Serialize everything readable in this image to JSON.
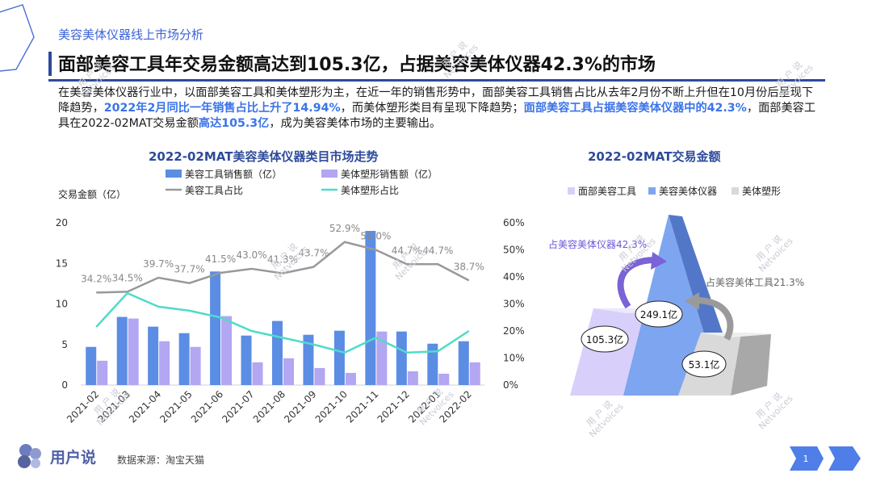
{
  "header": {
    "section_label": "美容美体仪器线上市场分析",
    "title": "面部美容工具年交易金额高达到105.3亿，占据美容美体仪器42.3%的市场"
  },
  "intro": {
    "p1": "在美容美体仪器行业中，以面部美容工具和美体塑形为主，在近一年的销售形势中，面部美容工具销售占比从去年2月份不断上升但在10月份后呈现下降趋势，",
    "h1": "2022年2月同比一年销售占比上升了14.94%",
    "p2": "，而美体塑形类目有呈现下降趋势；",
    "h2": "面部美容工具占据美容美体仪器中的42.3%",
    "p3": "，面部美容工具在2022-02MAT交易金额",
    "h3": "高达105.3亿",
    "p4": "，成为美容美体市场的主要输出。"
  },
  "chart_data": [
    {
      "type": "bar",
      "title": "2022-02MAT美容美体仪器类目市场走势",
      "ylabel": "交易金额（亿）",
      "categories": [
        "2021-02",
        "2021-03",
        "2021-04",
        "2021-05",
        "2021-06",
        "2021-07",
        "2021-08",
        "2021-09",
        "2021-10",
        "2021-11",
        "2021-12",
        "2022-01",
        "2022-02"
      ],
      "ylim": [
        0,
        20
      ],
      "yticks": [
        "0",
        "5",
        "10",
        "15",
        "20"
      ],
      "y2lim": [
        0,
        60
      ],
      "y2ticks": [
        "0%",
        "10%",
        "20%",
        "30%",
        "40%",
        "50%",
        "60%"
      ],
      "series": [
        {
          "name": "美容工具销售额（亿）",
          "kind": "bar",
          "axis": "left",
          "color": "#5b8de4",
          "values": [
            4.7,
            8.4,
            7.2,
            6.4,
            14.0,
            6.1,
            7.9,
            6.2,
            6.7,
            19.0,
            6.6,
            5.1,
            5.4
          ]
        },
        {
          "name": "美体塑形销售额（亿）",
          "kind": "bar",
          "axis": "left",
          "color": "#b3a6f2",
          "values": [
            3.0,
            8.2,
            5.4,
            4.7,
            8.5,
            2.8,
            3.3,
            2.1,
            1.5,
            6.6,
            1.7,
            1.4,
            2.8
          ]
        },
        {
          "name": "美容工具占比",
          "kind": "line",
          "axis": "right",
          "color": "#999999",
          "values": [
            34.2,
            34.5,
            39.7,
            37.7,
            41.5,
            43.0,
            41.3,
            43.7,
            52.9,
            50.0,
            44.7,
            44.7,
            38.7
          ],
          "labels": [
            "34.2%",
            "34.5%",
            "39.7%",
            "37.7%",
            "41.5%",
            "43.0%",
            "41.3%",
            "43.7%",
            "52.9%",
            "50.0%",
            "44.7%",
            "44.7%",
            "38.7%"
          ]
        },
        {
          "name": "美体塑形占比",
          "kind": "line",
          "axis": "right",
          "color": "#4fdcc9",
          "values": [
            21.5,
            34.0,
            29.0,
            27.5,
            25.0,
            20.0,
            17.5,
            15.0,
            12.0,
            17.5,
            12.0,
            12.5,
            20.0
          ]
        }
      ]
    },
    {
      "type": "pie",
      "title": "2022-02MAT交易金额",
      "legend": [
        "面部美容工具",
        "美容美体仪器",
        "美体塑形"
      ],
      "values": [
        105.3,
        249.1,
        53.1
      ],
      "value_labels": [
        "105.3亿",
        "249.1亿",
        "53.1亿"
      ],
      "share_labels": [
        "占美容美体仪器42.3%",
        "占美容美体工具21.3%"
      ],
      "colors": [
        "#d8d0fb",
        "#7ea6f0",
        "#d9d9d9"
      ]
    }
  ],
  "footer": {
    "brand": "用户说",
    "source": "数据来源：淘宝天猫",
    "page_number": "1"
  },
  "watermark": {
    "cn": "用 户 说",
    "en": "Netvoices"
  }
}
